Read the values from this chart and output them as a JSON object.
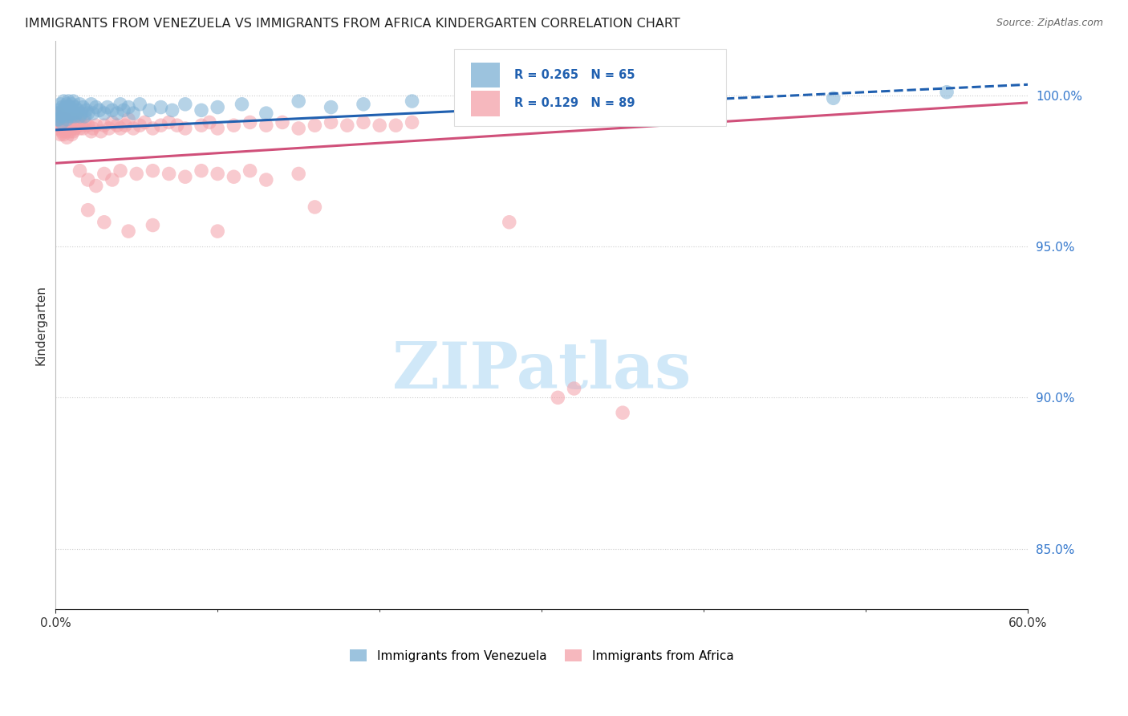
{
  "title": "IMMIGRANTS FROM VENEZUELA VS IMMIGRANTS FROM AFRICA KINDERGARTEN CORRELATION CHART",
  "source": "Source: ZipAtlas.com",
  "ylabel": "Kindergarten",
  "right_ytick_values": [
    0.85,
    0.9,
    0.95,
    1.0
  ],
  "right_ytick_labels": [
    "85.0%",
    "90.0%",
    "95.0%",
    "100.0%"
  ],
  "legend_blue_label": "Immigrants from Venezuela",
  "legend_pink_label": "Immigrants from Africa",
  "legend_R_blue": "R = 0.265",
  "legend_N_blue": "N = 65",
  "legend_R_pink": "R = 0.129",
  "legend_N_pink": "N = 89",
  "blue_dot_color": "#7BAFD4",
  "pink_dot_color": "#F4A0A8",
  "trend_blue_color": "#2060B0",
  "trend_pink_color": "#D0507A",
  "watermark_color": "#D0E8F8",
  "xlim": [
    0.0,
    0.6
  ],
  "ylim": [
    0.83,
    1.018
  ],
  "xtick_positions": [
    0.0,
    0.6
  ],
  "xtick_labels": [
    "0.0%",
    "60.0%"
  ],
  "blue_trend_x": [
    0.0,
    0.6
  ],
  "blue_trend_y": [
    0.9885,
    1.0035
  ],
  "blue_trend_dashed_start": 0.38,
  "pink_trend_x": [
    0.0,
    0.6
  ],
  "pink_trend_y": [
    0.9775,
    0.9975
  ],
  "venezuela_x": [
    0.001,
    0.001,
    0.002,
    0.002,
    0.003,
    0.003,
    0.004,
    0.004,
    0.005,
    0.005,
    0.005,
    0.006,
    0.006,
    0.007,
    0.007,
    0.008,
    0.008,
    0.009,
    0.009,
    0.01,
    0.01,
    0.011,
    0.011,
    0.012,
    0.012,
    0.013,
    0.014,
    0.015,
    0.015,
    0.016,
    0.017,
    0.018,
    0.019,
    0.02,
    0.022,
    0.023,
    0.025,
    0.027,
    0.03,
    0.032,
    0.035,
    0.038,
    0.04,
    0.042,
    0.045,
    0.048,
    0.052,
    0.058,
    0.065,
    0.072,
    0.08,
    0.09,
    0.1,
    0.115,
    0.13,
    0.15,
    0.17,
    0.19,
    0.22,
    0.26,
    0.3,
    0.35,
    0.4,
    0.48,
    0.55
  ],
  "venezuela_y": [
    0.992,
    0.994,
    0.992,
    0.995,
    0.993,
    0.997,
    0.991,
    0.996,
    0.993,
    0.995,
    0.998,
    0.994,
    0.996,
    0.992,
    0.997,
    0.993,
    0.998,
    0.994,
    0.996,
    0.993,
    0.997,
    0.994,
    0.998,
    0.993,
    0.996,
    0.994,
    0.995,
    0.993,
    0.997,
    0.994,
    0.996,
    0.993,
    0.995,
    0.994,
    0.997,
    0.994,
    0.996,
    0.995,
    0.994,
    0.996,
    0.995,
    0.994,
    0.997,
    0.995,
    0.996,
    0.994,
    0.997,
    0.995,
    0.996,
    0.995,
    0.997,
    0.995,
    0.996,
    0.997,
    0.994,
    0.998,
    0.996,
    0.997,
    0.998,
    0.996,
    0.998,
    0.997,
    0.998,
    0.999,
    1.001
  ],
  "africa_x": [
    0.001,
    0.001,
    0.001,
    0.002,
    0.002,
    0.002,
    0.003,
    0.003,
    0.003,
    0.004,
    0.004,
    0.005,
    0.005,
    0.005,
    0.006,
    0.006,
    0.006,
    0.007,
    0.007,
    0.007,
    0.008,
    0.008,
    0.009,
    0.009,
    0.01,
    0.01,
    0.01,
    0.011,
    0.011,
    0.012,
    0.013,
    0.014,
    0.015,
    0.015,
    0.016,
    0.017,
    0.018,
    0.02,
    0.022,
    0.023,
    0.025,
    0.028,
    0.03,
    0.033,
    0.035,
    0.038,
    0.04,
    0.043,
    0.045,
    0.048,
    0.052,
    0.055,
    0.06,
    0.065,
    0.07,
    0.075,
    0.08,
    0.09,
    0.095,
    0.1,
    0.11,
    0.12,
    0.13,
    0.14,
    0.15,
    0.16,
    0.17,
    0.18,
    0.19,
    0.2,
    0.21,
    0.22,
    0.015,
    0.02,
    0.025,
    0.03,
    0.035,
    0.04,
    0.05,
    0.06,
    0.07,
    0.08,
    0.09,
    0.1,
    0.11,
    0.12,
    0.13,
    0.15,
    0.31
  ],
  "africa_y": [
    0.991,
    0.993,
    0.99,
    0.992,
    0.994,
    0.989,
    0.99,
    0.993,
    0.987,
    0.991,
    0.988,
    0.992,
    0.99,
    0.987,
    0.99,
    0.992,
    0.988,
    0.989,
    0.992,
    0.986,
    0.989,
    0.991,
    0.99,
    0.988,
    0.989,
    0.992,
    0.987,
    0.99,
    0.988,
    0.989,
    0.991,
    0.99,
    0.989,
    0.992,
    0.99,
    0.989,
    0.991,
    0.99,
    0.988,
    0.989,
    0.99,
    0.988,
    0.99,
    0.989,
    0.991,
    0.99,
    0.989,
    0.99,
    0.992,
    0.989,
    0.99,
    0.991,
    0.989,
    0.99,
    0.991,
    0.99,
    0.989,
    0.99,
    0.991,
    0.989,
    0.99,
    0.991,
    0.99,
    0.991,
    0.989,
    0.99,
    0.991,
    0.99,
    0.991,
    0.99,
    0.99,
    0.991,
    0.975,
    0.972,
    0.97,
    0.974,
    0.972,
    0.975,
    0.974,
    0.975,
    0.974,
    0.973,
    0.975,
    0.974,
    0.973,
    0.975,
    0.972,
    0.974,
    0.9
  ],
  "africa_x_outliers": [
    0.02,
    0.03,
    0.045,
    0.06,
    0.1,
    0.16,
    0.28,
    0.35,
    0.32
  ],
  "africa_y_outliers": [
    0.962,
    0.958,
    0.955,
    0.957,
    0.955,
    0.963,
    0.958,
    0.895,
    0.903
  ]
}
